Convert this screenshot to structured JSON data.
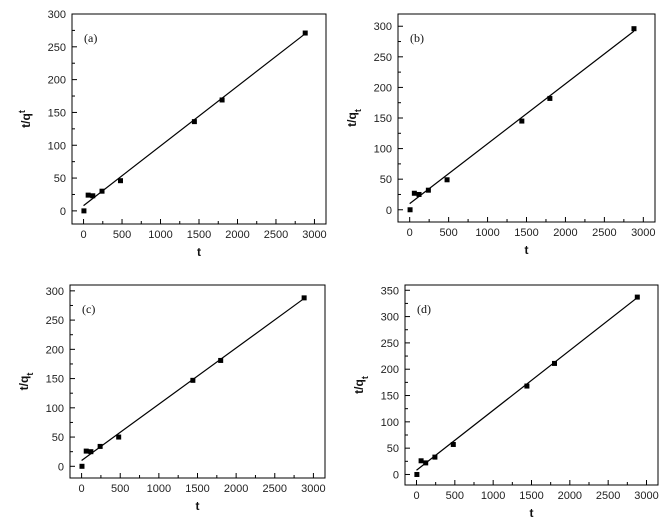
{
  "chart_data": [
    {
      "type": "scatter",
      "panel_label": "(a)",
      "xlabel": "t",
      "ylabel": "t/q",
      "ylabel_sub": "t",
      "ylabel_sub_mode": "super",
      "xlim": [
        -150,
        3150
      ],
      "ylim": [
        -20,
        300
      ],
      "xticks": [
        0,
        500,
        1000,
        1500,
        2000,
        2500,
        3000
      ],
      "yticks": [
        0,
        50,
        100,
        150,
        200,
        250,
        300
      ],
      "points": {
        "x": [
          5,
          60,
          120,
          240,
          480,
          1440,
          1800,
          2880
        ],
        "y": [
          0,
          24,
          23,
          30,
          46,
          136,
          169,
          271
        ]
      },
      "fit_line": {
        "x": [
          0,
          2880
        ],
        "y": [
          8,
          270
        ]
      }
    },
    {
      "type": "scatter",
      "panel_label": "(b)",
      "xlabel": "t",
      "ylabel": "t/q",
      "ylabel_sub": "t",
      "ylabel_sub_mode": "sub",
      "xlim": [
        -150,
        3150
      ],
      "ylim": [
        -20,
        320
      ],
      "xticks": [
        0,
        500,
        1000,
        1500,
        2000,
        2500,
        3000
      ],
      "yticks": [
        0,
        50,
        100,
        150,
        200,
        250,
        300
      ],
      "points": {
        "x": [
          5,
          60,
          120,
          240,
          480,
          1440,
          1800,
          2880
        ],
        "y": [
          0,
          27,
          25,
          32,
          49,
          145,
          182,
          296
        ]
      },
      "fit_line": {
        "x": [
          0,
          2880
        ],
        "y": [
          10,
          292
        ]
      }
    },
    {
      "type": "scatter",
      "panel_label": "(c)",
      "xlabel": "t",
      "ylabel": "t/q",
      "ylabel_sub": "t",
      "ylabel_sub_mode": "sub",
      "xlim": [
        -150,
        3150
      ],
      "ylim": [
        -20,
        310
      ],
      "xticks": [
        0,
        500,
        1000,
        1500,
        2000,
        2500,
        3000
      ],
      "yticks": [
        0,
        50,
        100,
        150,
        200,
        250,
        300
      ],
      "points": {
        "x": [
          5,
          60,
          120,
          240,
          480,
          1440,
          1800,
          2880
        ],
        "y": [
          0,
          26,
          25,
          34,
          50,
          147,
          181,
          288
        ]
      },
      "fit_line": {
        "x": [
          0,
          2880
        ],
        "y": [
          10,
          287
        ]
      }
    },
    {
      "type": "scatter",
      "panel_label": "(d)",
      "xlabel": "t",
      "ylabel": "t/q",
      "ylabel_sub": "t",
      "ylabel_sub_mode": "sub",
      "xlim": [
        -150,
        3150
      ],
      "ylim": [
        -20,
        360
      ],
      "xticks": [
        0,
        500,
        1000,
        1500,
        2000,
        2500,
        3000
      ],
      "yticks": [
        0,
        50,
        100,
        150,
        200,
        250,
        300,
        350
      ],
      "points": {
        "x": [
          5,
          60,
          120,
          240,
          480,
          1440,
          1800,
          2880
        ],
        "y": [
          0,
          26,
          22,
          33,
          57,
          168,
          211,
          337
        ]
      },
      "fit_line": {
        "x": [
          0,
          2880
        ],
        "y": [
          8,
          336
        ]
      }
    }
  ]
}
